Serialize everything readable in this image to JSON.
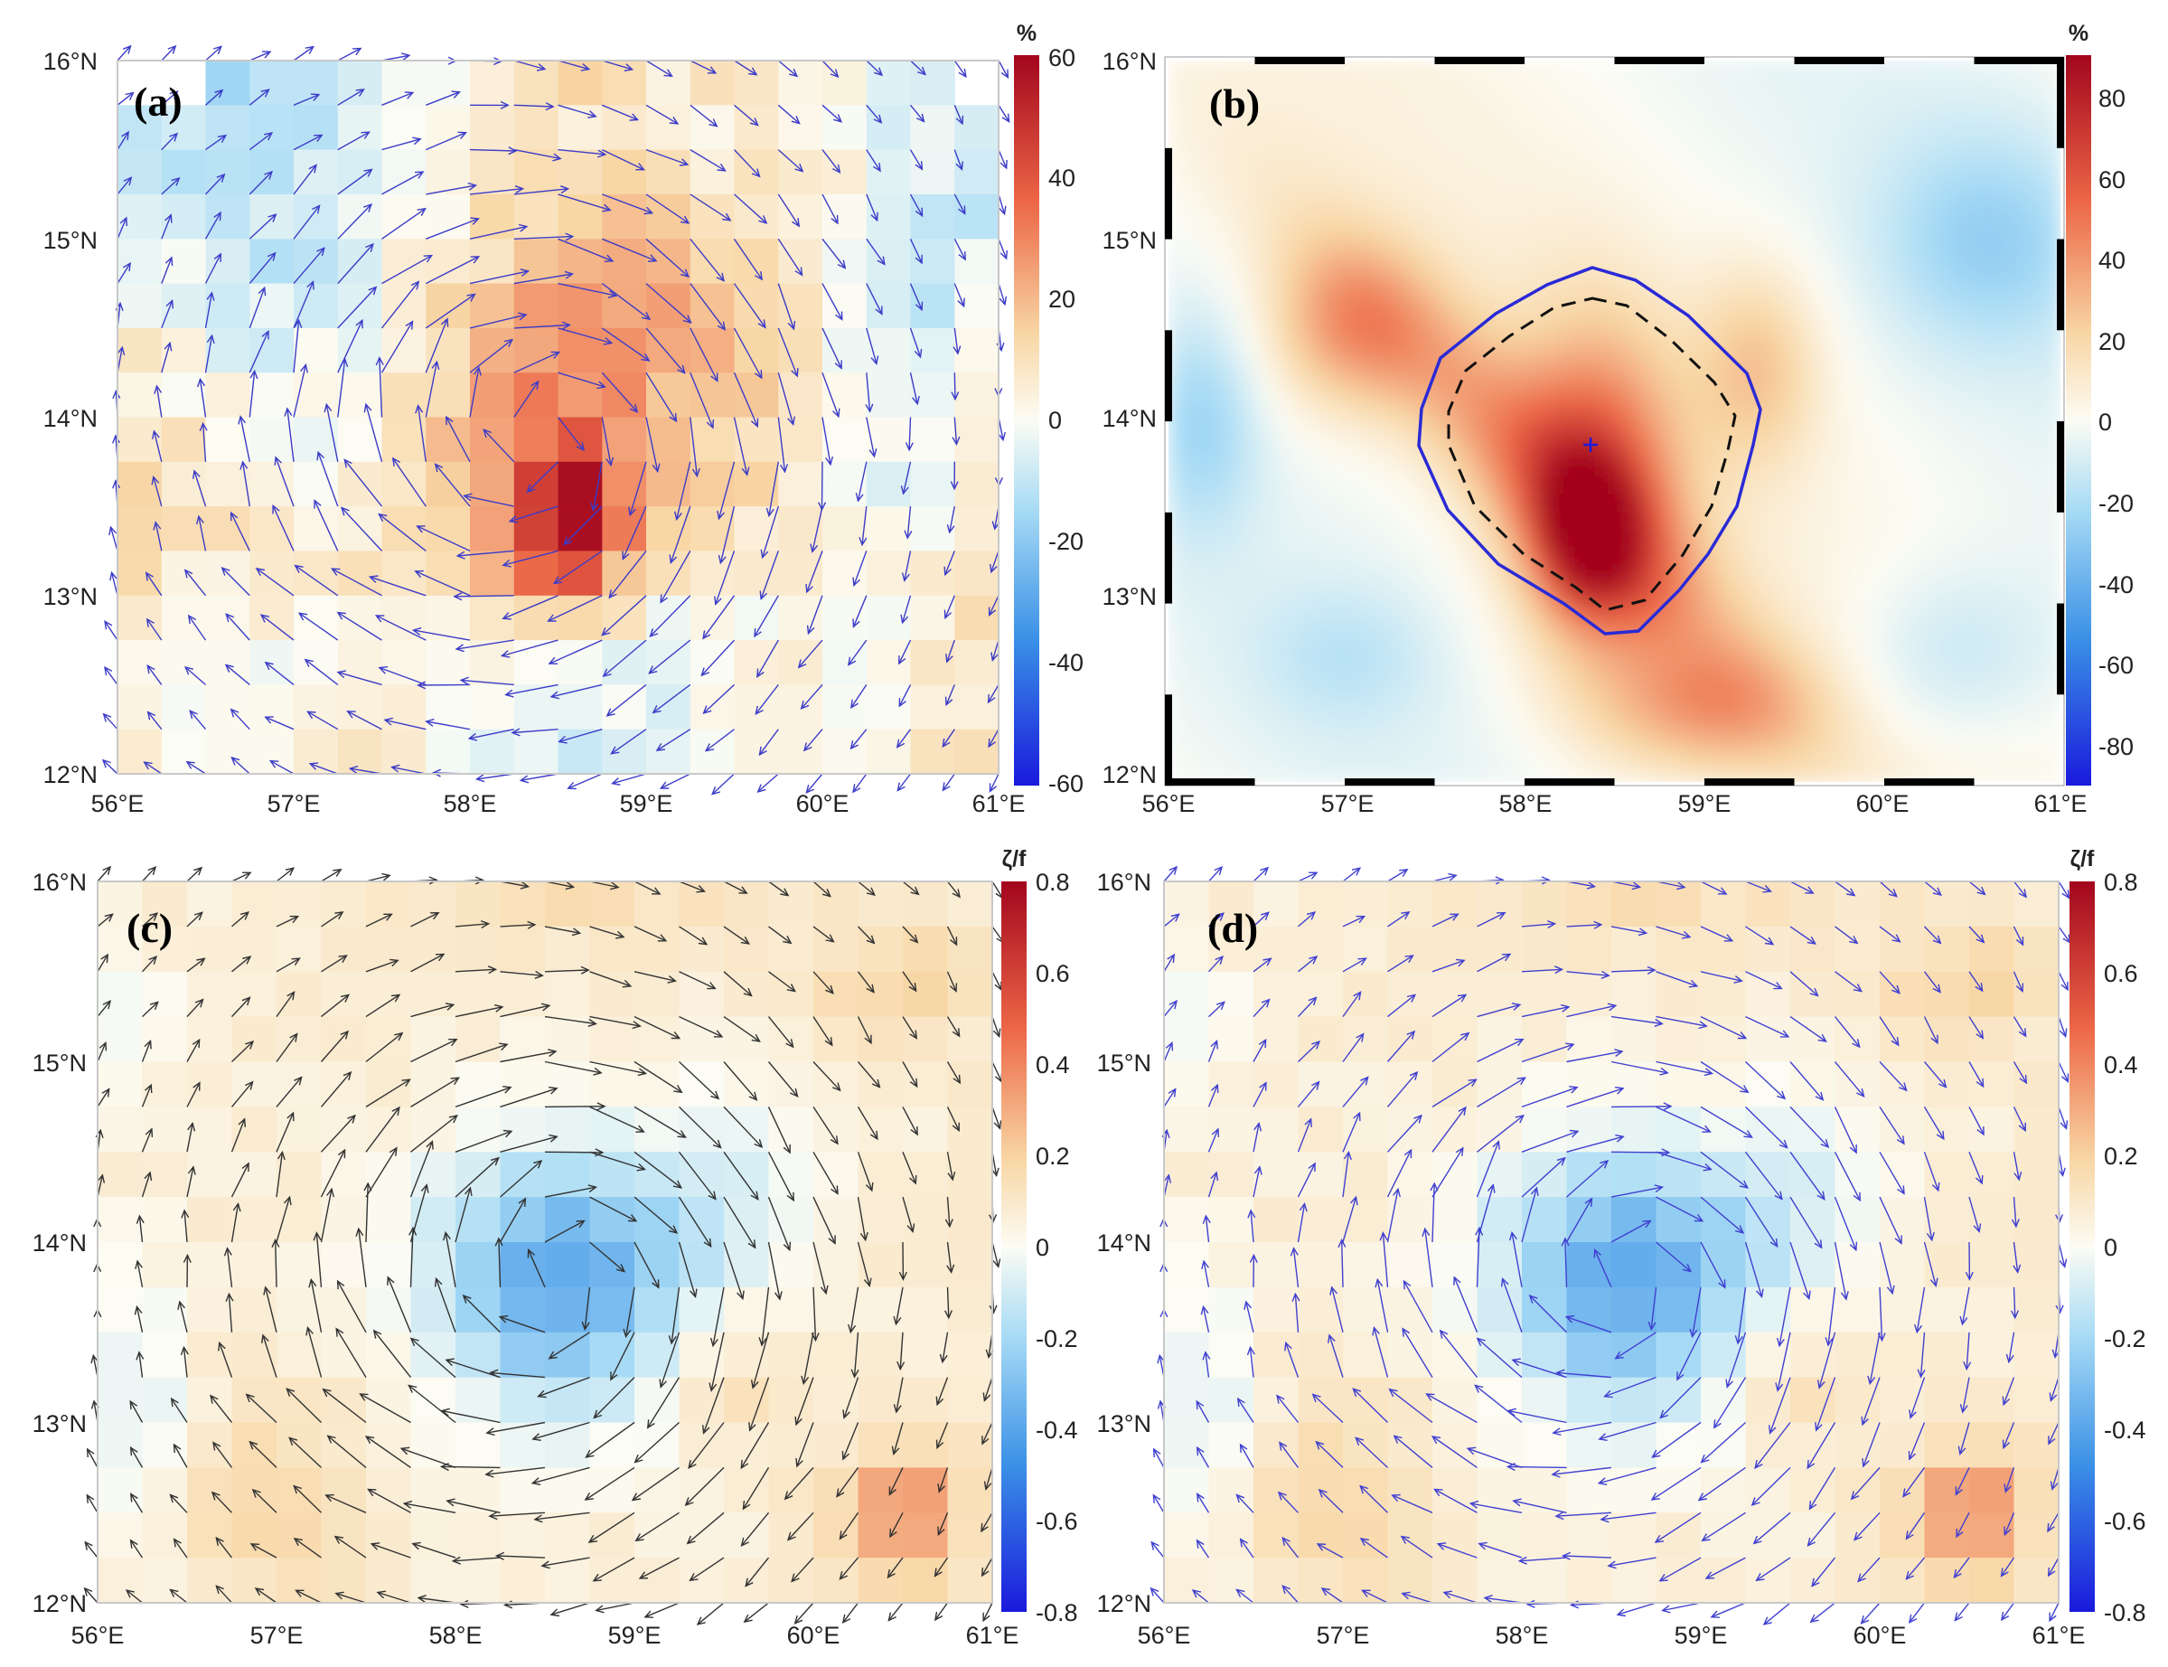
{
  "figure": {
    "panels": [
      {
        "id": "a",
        "label": "(a)",
        "lat_labels": [
          "16°N",
          "15°N",
          "14°N",
          "13°N",
          "12°N"
        ],
        "lon_labels": [
          "56°E",
          "57°E",
          "58°E",
          "59°E",
          "60°E",
          "61°E"
        ],
        "field": "grid",
        "colorbar": {
          "unit": "%",
          "ticks": [
            "60",
            "40",
            "20",
            "0",
            "-20",
            "-40",
            "-60"
          ],
          "min": -60,
          "max": 60
        },
        "arrow_color": "#3c3cc8",
        "eddy_center": [
          58.4,
          13.9
        ],
        "pattern": "pct"
      },
      {
        "id": "b",
        "label": "(b)",
        "lat_labels": [
          "16°N",
          "15°N",
          "14°N",
          "13°N",
          "12°N"
        ],
        "lon_labels": [
          "56°E",
          "57°E",
          "58°E",
          "59°E",
          "60°E",
          "61°E"
        ],
        "field": "smooth",
        "colorbar": {
          "unit": "%",
          "ticks": [
            "80",
            "60",
            "40",
            "20",
            "0",
            "-20",
            "-40",
            "-60",
            "-80"
          ],
          "min": -90,
          "max": 90
        },
        "eddy_center": [
          58.35,
          13.88
        ],
        "outer_contour_color": "#2a2ad6",
        "inner_contour_color": "#111111",
        "pattern": "pctsmooth"
      },
      {
        "id": "c",
        "label": "(c)",
        "lat_labels": [
          "16°N",
          "15°N",
          "14°N",
          "13°N",
          "12°N"
        ],
        "lon_labels": [
          "56°E",
          "57°E",
          "58°E",
          "59°E",
          "60°E",
          "61°E"
        ],
        "field": "grid",
        "colorbar": {
          "unit": "ζ/f",
          "ticks": [
            "0.8",
            "0.6",
            "0.4",
            "0.2",
            "0",
            "-0.2",
            "-0.4",
            "-0.6",
            "-0.8"
          ],
          "min": -0.8,
          "max": 0.8
        },
        "arrow_color": "#333333",
        "eddy_center": [
          58.6,
          13.8
        ],
        "pattern": "vort"
      },
      {
        "id": "d",
        "label": "(d)",
        "lat_labels": [
          "16°N",
          "15°N",
          "14°N",
          "13°N",
          "12°N"
        ],
        "lon_labels": [
          "56°E",
          "57°E",
          "58°E",
          "59°E",
          "60°E",
          "61°E"
        ],
        "field": "grid",
        "colorbar": {
          "unit": "ζ/f",
          "ticks": [
            "0.8",
            "0.6",
            "0.4",
            "0.2",
            "0",
            "-0.2",
            "-0.4",
            "-0.6",
            "-0.8"
          ],
          "min": -0.8,
          "max": 0.8
        },
        "arrow_color": "#4040d0",
        "eddy_center": [
          58.6,
          13.8
        ],
        "pattern": "vort"
      }
    ]
  }
}
